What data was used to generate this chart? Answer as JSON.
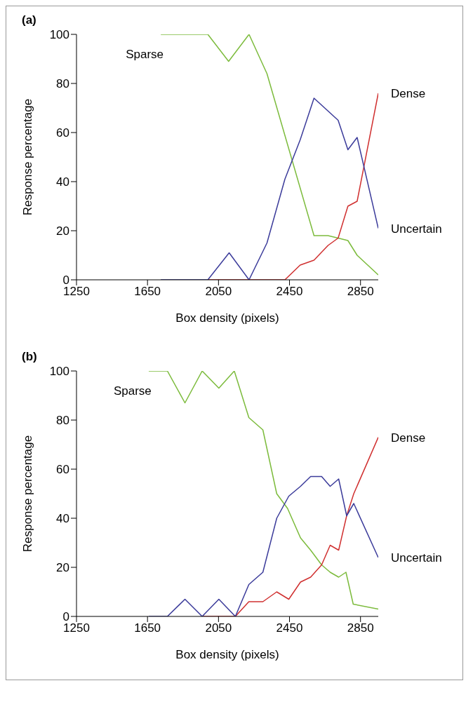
{
  "chart_data": [
    {
      "type": "line",
      "title": "(a)",
      "xlabel": "Box density (pixels)",
      "ylabel": "Response percentage",
      "xlim": [
        1250,
        2950
      ],
      "xticks": [
        1250,
        1650,
        2050,
        2450,
        2850
      ],
      "ylim": [
        0,
        100
      ],
      "yticks": [
        0,
        20,
        40,
        60,
        80,
        100
      ],
      "grid": false,
      "legend": false,
      "marker": "none",
      "line_style": "solid",
      "series": [
        {
          "name": "Sparse",
          "color": "#7cbb3c",
          "x": [
            1725,
            1990,
            2107,
            2222,
            2323,
            2588,
            2667,
            2724,
            2779,
            2831,
            2950
          ],
          "values": [
            100,
            100,
            89,
            100,
            84,
            18,
            18,
            17,
            16,
            10,
            2
          ]
        },
        {
          "name": "Dense",
          "color": "#d03030",
          "x": [
            1990,
            2222,
            2424,
            2510,
            2588,
            2667,
            2724,
            2779,
            2831,
            2950
          ],
          "values": [
            0,
            0,
            0,
            6,
            8,
            14,
            17,
            30,
            32,
            76
          ]
        },
        {
          "name": "Uncertain",
          "color": "#3b3b9a",
          "x": [
            1725,
            1990,
            2110,
            2222,
            2323,
            2424,
            2510,
            2588,
            2724,
            2779,
            2831,
            2950
          ],
          "values": [
            0,
            0,
            11,
            0,
            15,
            41,
            57,
            74,
            65,
            53,
            58,
            21
          ]
        }
      ]
    },
    {
      "type": "line",
      "title": "(b)",
      "xlabel": "Box density (pixels)",
      "ylabel": "Response percentage",
      "xlim": [
        1250,
        2950
      ],
      "xticks": [
        1250,
        1650,
        2050,
        2450,
        2850
      ],
      "ylim": [
        0,
        100
      ],
      "yticks": [
        0,
        20,
        40,
        60,
        80,
        100
      ],
      "grid": false,
      "legend": false,
      "marker": "none",
      "line_style": "solid",
      "series": [
        {
          "name": "Sparse",
          "color": "#7cbb3c",
          "x": [
            1657,
            1762,
            1861,
            1958,
            2052,
            2139,
            2221,
            2300,
            2378,
            2439,
            2512,
            2569,
            2631,
            2679,
            2727,
            2768,
            2809,
            2950
          ],
          "values": [
            100,
            100,
            87,
            100,
            93,
            100,
            81,
            76,
            50,
            44,
            32,
            27,
            21,
            18,
            16,
            18,
            5,
            3
          ]
        },
        {
          "name": "Dense",
          "color": "#d03030",
          "x": [
            1958,
            2145,
            2221,
            2300,
            2378,
            2446,
            2512,
            2569,
            2631,
            2679,
            2727,
            2772,
            2812,
            2950
          ],
          "values": [
            0,
            0,
            6,
            6,
            10,
            7,
            14,
            16,
            21,
            29,
            27,
            41,
            50,
            73
          ]
        },
        {
          "name": "Uncertain",
          "color": "#3b3b9a",
          "x": [
            1657,
            1762,
            1861,
            1958,
            2052,
            2145,
            2221,
            2300,
            2378,
            2446,
            2512,
            2569,
            2631,
            2679,
            2727,
            2772,
            2812,
            2950
          ],
          "values": [
            0,
            0,
            7,
            0,
            7,
            0,
            13,
            18,
            40,
            49,
            53,
            57,
            57,
            53,
            56,
            41,
            46,
            24
          ]
        }
      ]
    }
  ]
}
